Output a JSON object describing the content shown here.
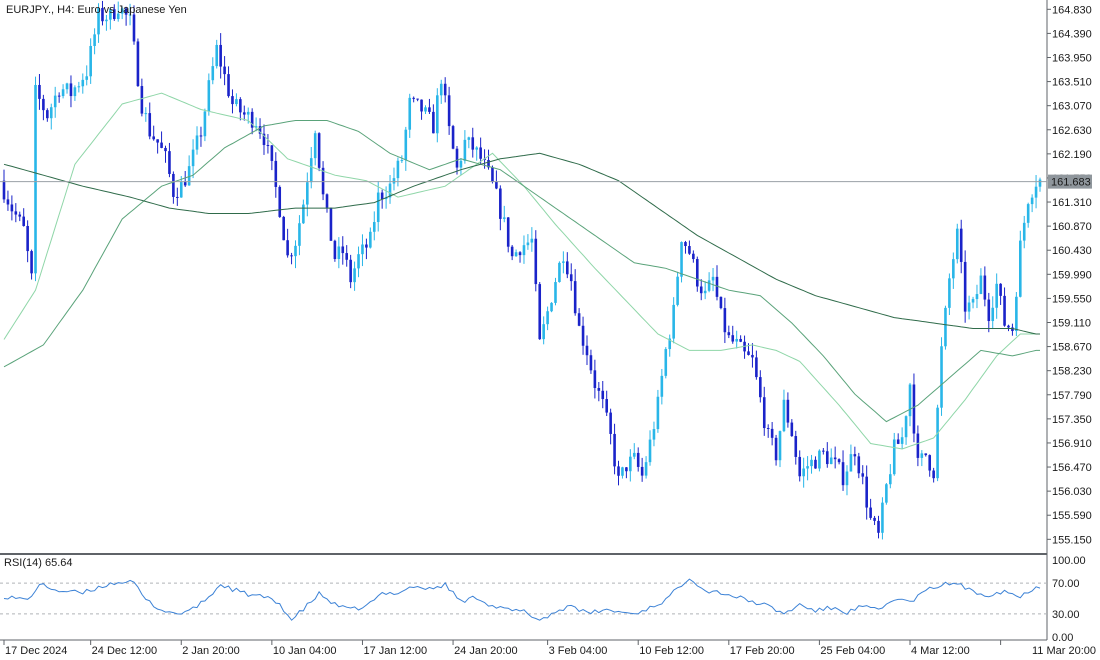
{
  "chart_data": {
    "type": "candlestick",
    "symbol_title": "EURJPY., H4:  Euro vs Japanese Yen",
    "current_price": "161.683",
    "colors": {
      "bull": "#29b6e8",
      "bear": "#1a23c9",
      "ma_fast": "#8fd6a8",
      "ma_mid": "#5aa37a",
      "ma_slow": "#2f6b4a",
      "rsi": "#3c82d6",
      "price_line": "#9aa0a6",
      "price_tag_bg": "#8f969c"
    },
    "price_axis": {
      "min": 154.9,
      "max": 165.0,
      "ticks": [
        "164.830",
        "164.390",
        "163.950",
        "163.510",
        "163.070",
        "162.630",
        "162.190",
        "161.750",
        "161.310",
        "160.870",
        "160.430",
        "159.990",
        "159.550",
        "159.110",
        "158.670",
        "158.230",
        "157.790",
        "157.350",
        "156.910",
        "156.470",
        "156.030",
        "155.590",
        "155.150"
      ]
    },
    "time_axis": {
      "labels": [
        "17 Dec 2024",
        "24 Dec 12:00",
        "2 Jan 20:00",
        "10 Jan 04:00",
        "17 Jan 12:00",
        "24 Jan 20:00",
        "3 Feb 04:00",
        "10 Feb 12:00",
        "17 Feb 20:00",
        "25 Feb 04:00",
        "4 Mar 12:00",
        "11 Mar 20:00"
      ],
      "label_bars": [
        0,
        22,
        45,
        68,
        91,
        114,
        138,
        161,
        184,
        207,
        230,
        253
      ]
    },
    "anchors": [
      [
        0,
        161.7
      ],
      [
        3,
        161.2
      ],
      [
        6,
        160.8
      ],
      [
        8,
        159.9
      ],
      [
        9,
        163.3
      ],
      [
        12,
        162.9
      ],
      [
        15,
        163.4
      ],
      [
        18,
        163.3
      ],
      [
        22,
        163.7
      ],
      [
        25,
        164.7
      ],
      [
        28,
        164.7
      ],
      [
        30,
        164.9
      ],
      [
        33,
        164.6
      ],
      [
        36,
        163.1
      ],
      [
        38,
        162.6
      ],
      [
        40,
        162.4
      ],
      [
        42,
        162.1
      ],
      [
        44,
        161.5
      ],
      [
        46,
        161.6
      ],
      [
        48,
        161.9
      ],
      [
        51,
        162.6
      ],
      [
        53,
        163.4
      ],
      [
        55,
        164.1
      ],
      [
        57,
        163.6
      ],
      [
        59,
        163.1
      ],
      [
        62,
        162.9
      ],
      [
        65,
        162.8
      ],
      [
        67,
        162.5
      ],
      [
        69,
        161.9
      ],
      [
        71,
        161.2
      ],
      [
        73,
        160.3
      ],
      [
        75,
        160.6
      ],
      [
        77,
        161.3
      ],
      [
        80,
        162.7
      ],
      [
        82,
        161.4
      ],
      [
        85,
        160.3
      ],
      [
        87,
        160.4
      ],
      [
        89,
        159.9
      ],
      [
        91,
        160.3
      ],
      [
        94,
        160.6
      ],
      [
        96,
        161.4
      ],
      [
        99,
        161.6
      ],
      [
        102,
        162.1
      ],
      [
        104,
        163.1
      ],
      [
        107,
        163.0
      ],
      [
        110,
        162.7
      ],
      [
        112,
        163.6
      ],
      [
        114,
        162.6
      ],
      [
        116,
        161.9
      ],
      [
        118,
        162.4
      ],
      [
        120,
        162.3
      ],
      [
        122,
        162.1
      ],
      [
        124,
        161.8
      ],
      [
        126,
        161.4
      ],
      [
        128,
        160.9
      ],
      [
        130,
        160.3
      ],
      [
        132,
        160.5
      ],
      [
        135,
        160.6
      ],
      [
        137,
        158.7
      ],
      [
        139,
        159.3
      ],
      [
        141,
        159.9
      ],
      [
        143,
        160.4
      ],
      [
        145,
        159.9
      ],
      [
        147,
        159.0
      ],
      [
        149,
        158.6
      ],
      [
        151,
        158.0
      ],
      [
        153,
        157.6
      ],
      [
        155,
        157.0
      ],
      [
        157,
        156.2
      ],
      [
        159,
        156.5
      ],
      [
        161,
        156.6
      ],
      [
        163,
        156.3
      ],
      [
        165,
        156.9
      ],
      [
        167,
        157.6
      ],
      [
        169,
        158.6
      ],
      [
        171,
        159.3
      ],
      [
        173,
        160.7
      ],
      [
        175,
        160.4
      ],
      [
        177,
        159.9
      ],
      [
        179,
        159.6
      ],
      [
        181,
        159.9
      ],
      [
        183,
        159.2
      ],
      [
        185,
        158.8
      ],
      [
        187,
        158.7
      ],
      [
        189,
        158.5
      ],
      [
        191,
        158.4
      ],
      [
        193,
        157.7
      ],
      [
        195,
        157.0
      ],
      [
        197,
        156.7
      ],
      [
        199,
        157.6
      ],
      [
        201,
        157.1
      ],
      [
        203,
        156.3
      ],
      [
        205,
        156.5
      ],
      [
        207,
        156.6
      ],
      [
        209,
        156.7
      ],
      [
        211,
        156.6
      ],
      [
        214,
        156.3
      ],
      [
        217,
        156.8
      ],
      [
        219,
        156.2
      ],
      [
        221,
        155.5
      ],
      [
        223,
        155.2
      ],
      [
        225,
        156.1
      ],
      [
        227,
        156.8
      ],
      [
        229,
        157.0
      ],
      [
        231,
        158.0
      ],
      [
        233,
        156.5
      ],
      [
        235,
        156.7
      ],
      [
        237,
        156.4
      ],
      [
        239,
        158.6
      ],
      [
        241,
        159.9
      ],
      [
        243,
        160.7
      ],
      [
        245,
        159.4
      ],
      [
        247,
        159.4
      ],
      [
        249,
        159.9
      ],
      [
        251,
        159.3
      ],
      [
        253,
        159.8
      ],
      [
        255,
        159.1
      ],
      [
        257,
        159.0
      ],
      [
        259,
        160.5
      ],
      [
        261,
        161.4
      ],
      [
        263,
        161.7
      ]
    ],
    "moving_averages": [
      {
        "key": "ma_fast",
        "points": [
          [
            0,
            158.8
          ],
          [
            8,
            159.7
          ],
          [
            18,
            162.0
          ],
          [
            30,
            163.1
          ],
          [
            40,
            163.3
          ],
          [
            50,
            163.0
          ],
          [
            62,
            162.8
          ],
          [
            72,
            162.1
          ],
          [
            84,
            161.8
          ],
          [
            92,
            161.7
          ],
          [
            100,
            161.4
          ],
          [
            112,
            161.6
          ],
          [
            124,
            162.2
          ],
          [
            132,
            161.6
          ],
          [
            140,
            160.9
          ],
          [
            150,
            160.1
          ],
          [
            158,
            159.5
          ],
          [
            166,
            158.9
          ],
          [
            174,
            158.6
          ],
          [
            182,
            158.6
          ],
          [
            190,
            158.7
          ],
          [
            196,
            158.6
          ],
          [
            202,
            158.4
          ],
          [
            212,
            157.6
          ],
          [
            220,
            156.9
          ],
          [
            228,
            156.8
          ],
          [
            236,
            157.0
          ],
          [
            244,
            157.7
          ],
          [
            252,
            158.5
          ],
          [
            258,
            158.9
          ]
        ]
      },
      {
        "key": "ma_mid",
        "points": [
          [
            0,
            158.3
          ],
          [
            10,
            158.7
          ],
          [
            20,
            159.7
          ],
          [
            30,
            161.0
          ],
          [
            40,
            161.6
          ],
          [
            48,
            161.8
          ],
          [
            56,
            162.3
          ],
          [
            66,
            162.7
          ],
          [
            74,
            162.8
          ],
          [
            82,
            162.8
          ],
          [
            90,
            162.6
          ],
          [
            98,
            162.2
          ],
          [
            108,
            161.9
          ],
          [
            116,
            162.1
          ],
          [
            126,
            161.9
          ],
          [
            134,
            161.5
          ],
          [
            142,
            161.1
          ],
          [
            150,
            160.7
          ],
          [
            160,
            160.2
          ],
          [
            168,
            160.1
          ],
          [
            176,
            159.9
          ],
          [
            184,
            159.7
          ],
          [
            192,
            159.6
          ],
          [
            200,
            159.1
          ],
          [
            208,
            158.5
          ],
          [
            216,
            157.8
          ],
          [
            224,
            157.3
          ],
          [
            232,
            157.6
          ],
          [
            240,
            158.1
          ],
          [
            248,
            158.6
          ],
          [
            256,
            158.5
          ],
          [
            262,
            158.6
          ]
        ]
      },
      {
        "key": "ma_slow",
        "points": [
          [
            0,
            162.0
          ],
          [
            10,
            161.8
          ],
          [
            20,
            161.6
          ],
          [
            32,
            161.4
          ],
          [
            42,
            161.2
          ],
          [
            52,
            161.1
          ],
          [
            62,
            161.1
          ],
          [
            74,
            161.2
          ],
          [
            84,
            161.2
          ],
          [
            94,
            161.3
          ],
          [
            104,
            161.6
          ],
          [
            116,
            161.9
          ],
          [
            126,
            162.1
          ],
          [
            136,
            162.2
          ],
          [
            146,
            162.0
          ],
          [
            156,
            161.7
          ],
          [
            166,
            161.2
          ],
          [
            176,
            160.7
          ],
          [
            186,
            160.3
          ],
          [
            196,
            159.9
          ],
          [
            206,
            159.6
          ],
          [
            216,
            159.4
          ],
          [
            226,
            159.2
          ],
          [
            236,
            159.1
          ],
          [
            246,
            159.0
          ],
          [
            256,
            159.0
          ],
          [
            262,
            158.9
          ]
        ]
      }
    ],
    "rsi": {
      "label": "RSI(14) 65.64",
      "min": 0,
      "max": 100,
      "ticks": [
        "100.00",
        "70.00",
        "30.00",
        "0.00"
      ],
      "levels": [
        70,
        30
      ],
      "anchors": [
        [
          0,
          53
        ],
        [
          6,
          48
        ],
        [
          9,
          68
        ],
        [
          14,
          60
        ],
        [
          20,
          57
        ],
        [
          26,
          68
        ],
        [
          30,
          72
        ],
        [
          33,
          70
        ],
        [
          36,
          48
        ],
        [
          40,
          35
        ],
        [
          44,
          30
        ],
        [
          48,
          36
        ],
        [
          52,
          52
        ],
        [
          55,
          68
        ],
        [
          58,
          62
        ],
        [
          62,
          55
        ],
        [
          66,
          52
        ],
        [
          70,
          43
        ],
        [
          73,
          22
        ],
        [
          76,
          36
        ],
        [
          80,
          56
        ],
        [
          84,
          42
        ],
        [
          88,
          35
        ],
        [
          92,
          40
        ],
        [
          96,
          56
        ],
        [
          100,
          58
        ],
        [
          104,
          66
        ],
        [
          108,
          62
        ],
        [
          112,
          68
        ],
        [
          116,
          46
        ],
        [
          120,
          52
        ],
        [
          124,
          40
        ],
        [
          128,
          35
        ],
        [
          132,
          33
        ],
        [
          136,
          22
        ],
        [
          140,
          32
        ],
        [
          144,
          42
        ],
        [
          148,
          30
        ],
        [
          152,
          35
        ],
        [
          156,
          33
        ],
        [
          160,
          30
        ],
        [
          164,
          38
        ],
        [
          168,
          48
        ],
        [
          172,
          68
        ],
        [
          174,
          78
        ],
        [
          178,
          60
        ],
        [
          182,
          58
        ],
        [
          186,
          52
        ],
        [
          190,
          46
        ],
        [
          194,
          40
        ],
        [
          198,
          30
        ],
        [
          202,
          42
        ],
        [
          206,
          34
        ],
        [
          210,
          38
        ],
        [
          214,
          32
        ],
        [
          218,
          40
        ],
        [
          222,
          34
        ],
        [
          226,
          50
        ],
        [
          230,
          45
        ],
        [
          234,
          60
        ],
        [
          238,
          68
        ],
        [
          242,
          70
        ],
        [
          246,
          58
        ],
        [
          250,
          55
        ],
        [
          254,
          60
        ],
        [
          258,
          52
        ],
        [
          262,
          66
        ]
      ]
    }
  }
}
